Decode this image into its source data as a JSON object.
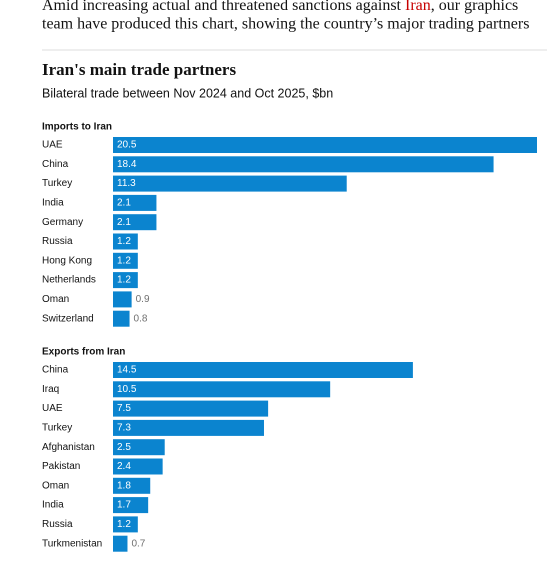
{
  "intro": {
    "before_link": "Amid increasing actual and threatened sanctions against ",
    "link": "Iran",
    "after_link": ", our graphics",
    "line2": "team have produced this chart, showing the country’s major trading partners"
  },
  "header": {
    "title": "Iran's main trade partners",
    "subtitle": "Bilateral trade between Nov 2024 and Oct 2025, $bn"
  },
  "chart_data": [
    {
      "type": "bar",
      "orientation": "horizontal",
      "title": "Imports to Iran",
      "color": "#0b84cf",
      "categories": [
        "UAE",
        "China",
        "Turkey",
        "India",
        "Germany",
        "Russia",
        "Hong Kong",
        "Netherlands",
        "Oman",
        "Switzerland"
      ],
      "values": [
        20.5,
        18.4,
        11.3,
        2.1,
        2.1,
        1.2,
        1.2,
        1.2,
        0.9,
        0.8
      ]
    },
    {
      "type": "bar",
      "orientation": "horizontal",
      "title": "Exports from Iran",
      "color": "#0b84cf",
      "categories": [
        "China",
        "Iraq",
        "UAE",
        "Turkey",
        "Afghanistan",
        "Pakistan",
        "Oman",
        "India",
        "Russia",
        "Turkmenistan"
      ],
      "values": [
        14.5,
        10.5,
        7.5,
        7.3,
        2.5,
        2.4,
        1.8,
        1.7,
        1.2,
        0.7
      ]
    }
  ]
}
